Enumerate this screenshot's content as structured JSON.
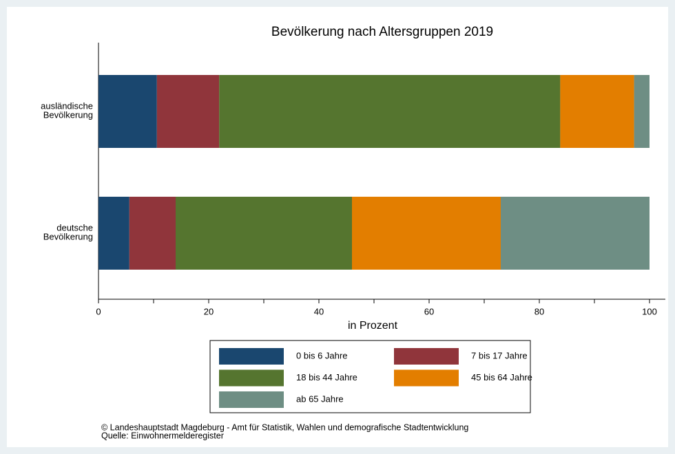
{
  "chart_data": {
    "type": "stacked_barh",
    "title": "Bevölkerung nach Altersgruppen 2019",
    "xlabel": "in Prozent",
    "categories": [
      "ausländische Bevölkerung",
      "deutsche Bevölkerung"
    ],
    "series": [
      {
        "name": "0 bis 6 Jahre",
        "color": "#1a476f",
        "values": [
          10.6,
          5.6
        ]
      },
      {
        "name": "7 bis 17 Jahre",
        "color": "#90353b",
        "values": [
          11.3,
          8.4
        ]
      },
      {
        "name": "18 bis 44 Jahre",
        "color": "#55752f",
        "values": [
          61.9,
          32.0
        ]
      },
      {
        "name": "45 bis 64 Jahre",
        "color": "#e37e00",
        "values": [
          13.4,
          27.0
        ]
      },
      {
        "name": "ab 65 Jahre",
        "color": "#6e8e84",
        "values": [
          2.8,
          27.0
        ]
      }
    ],
    "xlim": [
      0,
      100
    ],
    "xticks": [
      0,
      20,
      40,
      60,
      80,
      100
    ],
    "xminor_ticks": [
      10,
      30,
      50,
      70,
      90
    ],
    "legend": "bottom",
    "footer": [
      "©  Landeshauptstadt Magdeburg - Amt für Statistik, Wahlen und demografische Stadtentwicklung",
      "Quelle: Einwohnermelderegister"
    ]
  }
}
